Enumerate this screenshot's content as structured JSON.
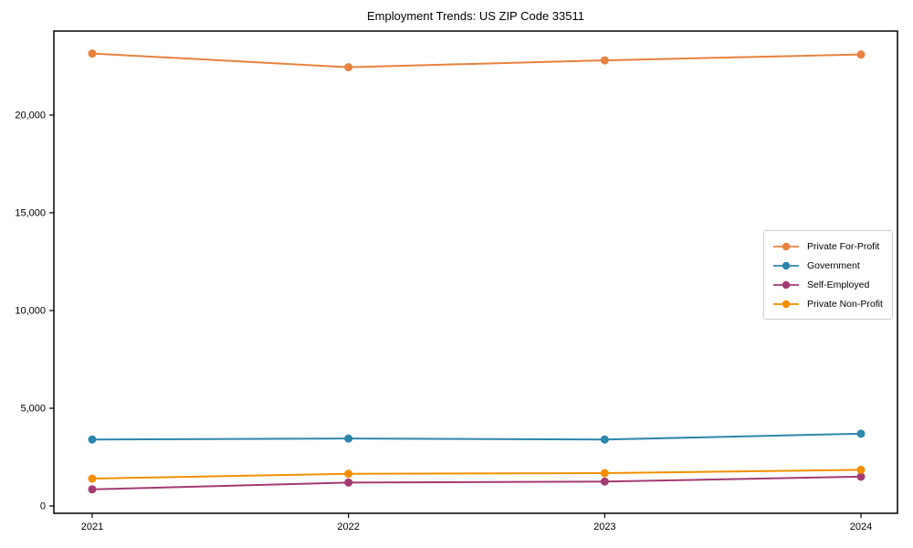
{
  "figure": {
    "background_color": "#ffffff",
    "axis_color": "#000000",
    "legend_border_color": "#cccccc"
  },
  "chart_data": {
    "type": "line",
    "title": "Employment Trends: US ZIP Code 33511",
    "xlabel": "",
    "ylabel": "",
    "categories": [
      "2021",
      "2022",
      "2023",
      "2024"
    ],
    "series": [
      {
        "name": "Private For-Profit",
        "color": "#e8823e",
        "values": [
          23150,
          22450,
          22800,
          23100
        ]
      },
      {
        "name": "Government",
        "color": "#2e86ab",
        "values": [
          3400,
          3450,
          3400,
          3700
        ]
      },
      {
        "name": "Self-Employed",
        "color": "#a23b72",
        "values": [
          850,
          1200,
          1250,
          1500
        ]
      },
      {
        "name": "Private Non-Profit",
        "color": "#f18f01",
        "values": [
          1400,
          1650,
          1680,
          1850
        ]
      }
    ],
    "yticks": [
      0,
      5000,
      10000,
      15000,
      20000
    ],
    "ytick_labels": [
      "0",
      "5,000",
      "10,000",
      "15,000",
      "20,000"
    ],
    "ylim": [
      -400,
      24300
    ],
    "grid": false,
    "legend_position": "center-right",
    "marker": "circle",
    "line_width": 2
  }
}
